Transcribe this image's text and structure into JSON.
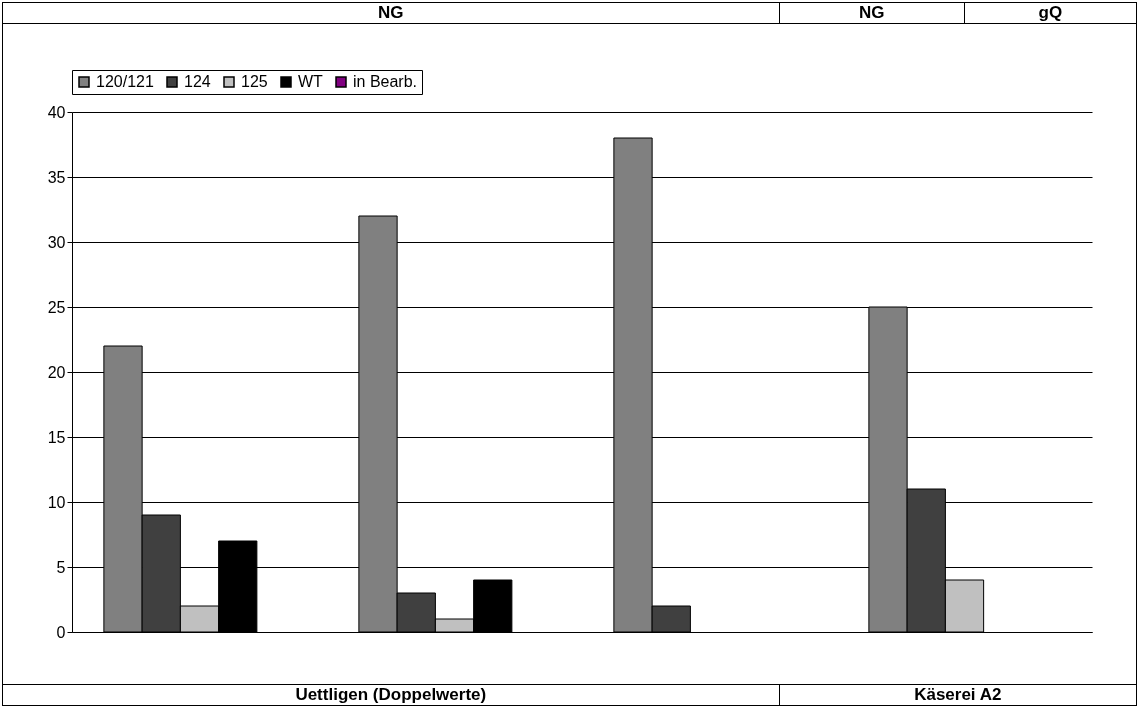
{
  "chart_data": {
    "type": "bar",
    "categories": [
      null,
      null,
      null,
      null
    ],
    "series": [
      {
        "name": "120/121",
        "color": "#808080",
        "values": [
          22,
          32,
          38,
          25
        ]
      },
      {
        "name": "124",
        "color": "#404040",
        "values": [
          9,
          3,
          2,
          11
        ]
      },
      {
        "name": "125",
        "color": "#c0c0c0",
        "values": [
          2,
          1,
          null,
          4
        ]
      },
      {
        "name": "WT",
        "color": "#000000",
        "values": [
          7,
          4,
          null,
          null
        ]
      },
      {
        "name": "in Bearb.",
        "color": "#800080",
        "values": [
          null,
          null,
          null,
          null
        ]
      }
    ],
    "ylim": [
      0,
      40
    ],
    "yticks": [
      0,
      5,
      10,
      15,
      20,
      25,
      30,
      35,
      40
    ],
    "grid": "y",
    "legend": "top",
    "tick_labels": "y",
    "annotations": [
      "NG",
      "NG",
      "gQ",
      "Uettligen (Doppelwerte)",
      "Käserei A2"
    ]
  }
}
